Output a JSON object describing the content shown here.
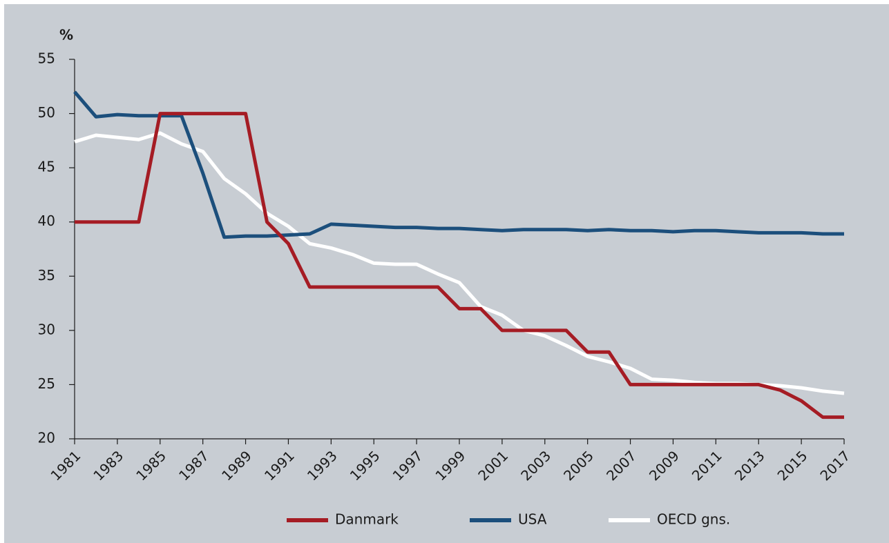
{
  "chart_data": {
    "type": "line",
    "y_label": "%",
    "x": [
      1981,
      1982,
      1983,
      1984,
      1985,
      1986,
      1987,
      1988,
      1989,
      1990,
      1991,
      1992,
      1993,
      1994,
      1995,
      1996,
      1997,
      1998,
      1999,
      2000,
      2001,
      2002,
      2003,
      2004,
      2005,
      2006,
      2007,
      2008,
      2009,
      2010,
      2011,
      2012,
      2013,
      2014,
      2015,
      2016,
      2017
    ],
    "series": [
      {
        "name": "Danmark",
        "color": "#a51c24",
        "values": [
          40,
          40,
          40,
          40,
          50,
          50,
          50,
          50,
          50,
          40,
          38,
          34,
          34,
          34,
          34,
          34,
          34,
          34,
          32,
          32,
          30,
          30,
          30,
          30,
          28,
          28,
          25,
          25,
          25,
          25,
          25,
          25,
          25,
          24.5,
          23.5,
          22,
          22
        ]
      },
      {
        "name": "USA",
        "color": "#1c4f7c",
        "values": [
          52,
          49.7,
          49.9,
          49.8,
          49.8,
          49.8,
          44.5,
          38.6,
          38.7,
          38.7,
          38.8,
          38.9,
          39.8,
          39.7,
          39.6,
          39.5,
          39.5,
          39.4,
          39.4,
          39.3,
          39.2,
          39.3,
          39.3,
          39.3,
          39.2,
          39.3,
          39.2,
          39.2,
          39.1,
          39.2,
          39.2,
          39.1,
          39.0,
          39.0,
          39.0,
          38.9,
          38.9
        ]
      },
      {
        "name": "OECD gns.",
        "color": "#ffffff",
        "values": [
          47.4,
          48.0,
          47.8,
          47.6,
          48.2,
          47.2,
          46.5,
          44.0,
          42.6,
          40.8,
          39.6,
          38.0,
          37.6,
          37.0,
          36.2,
          36.1,
          36.1,
          35.2,
          34.4,
          32.2,
          31.4,
          30.0,
          29.5,
          28.6,
          27.6,
          27.1,
          26.5,
          25.5,
          25.4,
          25.2,
          25.1,
          25.1,
          25.0,
          24.9,
          24.7,
          24.4,
          24.2
        ]
      }
    ],
    "xlim": [
      1981,
      2017
    ],
    "xticks": [
      1981,
      1983,
      1985,
      1987,
      1989,
      1991,
      1993,
      1995,
      1997,
      1999,
      2001,
      2003,
      2005,
      2007,
      2009,
      2011,
      2013,
      2015,
      2017
    ],
    "ylim": [
      20,
      55
    ],
    "yticks": [
      20,
      25,
      30,
      35,
      40,
      45,
      50,
      55
    ],
    "grid": false,
    "legend": "bottom"
  }
}
